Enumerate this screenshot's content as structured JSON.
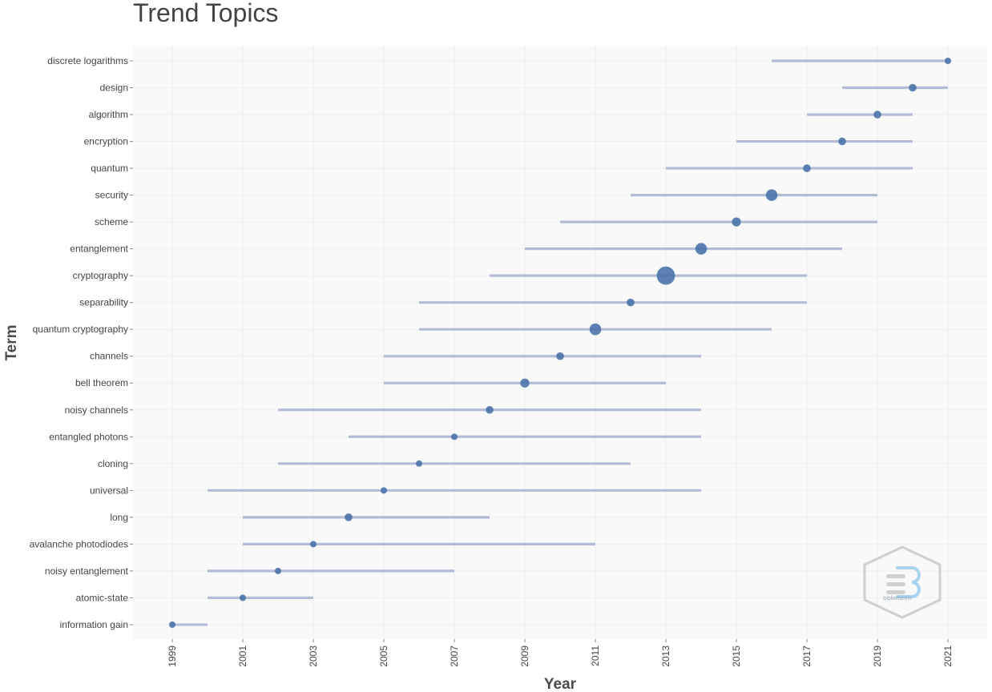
{
  "chart_data": {
    "type": "scatter",
    "title": "Trend Topics",
    "xlabel": "Year",
    "ylabel": "Term",
    "xlim": [
      1998.2,
      2022.1
    ],
    "x_ticks": [
      1999,
      2001,
      2003,
      2005,
      2007,
      2009,
      2011,
      2013,
      2015,
      2017,
      2019,
      2021
    ],
    "grid": true,
    "colors": {
      "line": "#b3bcd6",
      "point": "#4a72a8",
      "plot_bg": "#f9f9f9"
    },
    "terms": [
      {
        "term": "discrete logarithms",
        "q1": 2016,
        "median": 2021,
        "q3": 2021,
        "freq": 1
      },
      {
        "term": "design",
        "q1": 2018,
        "median": 2020,
        "q3": 2021,
        "freq": 2
      },
      {
        "term": "algorithm",
        "q1": 2017,
        "median": 2019,
        "q3": 2020,
        "freq": 2
      },
      {
        "term": "encryption",
        "q1": 2015,
        "median": 2018,
        "q3": 2020,
        "freq": 2
      },
      {
        "term": "quantum",
        "q1": 2013,
        "median": 2017,
        "q3": 2020,
        "freq": 2
      },
      {
        "term": "security",
        "q1": 2012,
        "median": 2016,
        "q3": 2019,
        "freq": 5
      },
      {
        "term": "scheme",
        "q1": 2010,
        "median": 2015,
        "q3": 2019,
        "freq": 3
      },
      {
        "term": "entanglement",
        "q1": 2009,
        "median": 2014,
        "q3": 2018,
        "freq": 5
      },
      {
        "term": "cryptography",
        "q1": 2008,
        "median": 2013,
        "q3": 2017,
        "freq": 10
      },
      {
        "term": "separability",
        "q1": 2006,
        "median": 2012,
        "q3": 2017,
        "freq": 2
      },
      {
        "term": "quantum cryptography",
        "q1": 2006,
        "median": 2011,
        "q3": 2016,
        "freq": 5
      },
      {
        "term": "channels",
        "q1": 2005,
        "median": 2010,
        "q3": 2014,
        "freq": 2
      },
      {
        "term": "bell theorem",
        "q1": 2005,
        "median": 2009,
        "q3": 2013,
        "freq": 3
      },
      {
        "term": "noisy channels",
        "q1": 2002,
        "median": 2008,
        "q3": 2014,
        "freq": 2
      },
      {
        "term": "entangled photons",
        "q1": 2004,
        "median": 2007,
        "q3": 2014,
        "freq": 1
      },
      {
        "term": "cloning",
        "q1": 2002,
        "median": 2006,
        "q3": 2012,
        "freq": 1
      },
      {
        "term": "universal",
        "q1": 2000,
        "median": 2005,
        "q3": 2014,
        "freq": 1
      },
      {
        "term": "long",
        "q1": 2001,
        "median": 2004,
        "q3": 2008,
        "freq": 2
      },
      {
        "term": "avalanche photodiodes",
        "q1": 2001,
        "median": 2003,
        "q3": 2011,
        "freq": 1
      },
      {
        "term": "noisy entanglement",
        "q1": 2000,
        "median": 2002,
        "q3": 2007,
        "freq": 1
      },
      {
        "term": "atomic-state",
        "q1": 2000,
        "median": 2001,
        "q3": 2003,
        "freq": 1
      },
      {
        "term": "information gain",
        "q1": 1999,
        "median": 1999,
        "q3": 2000,
        "freq": 1
      }
    ]
  },
  "watermark": {
    "text": "bibliometrix",
    "icon": "bibliometrix-logo"
  }
}
